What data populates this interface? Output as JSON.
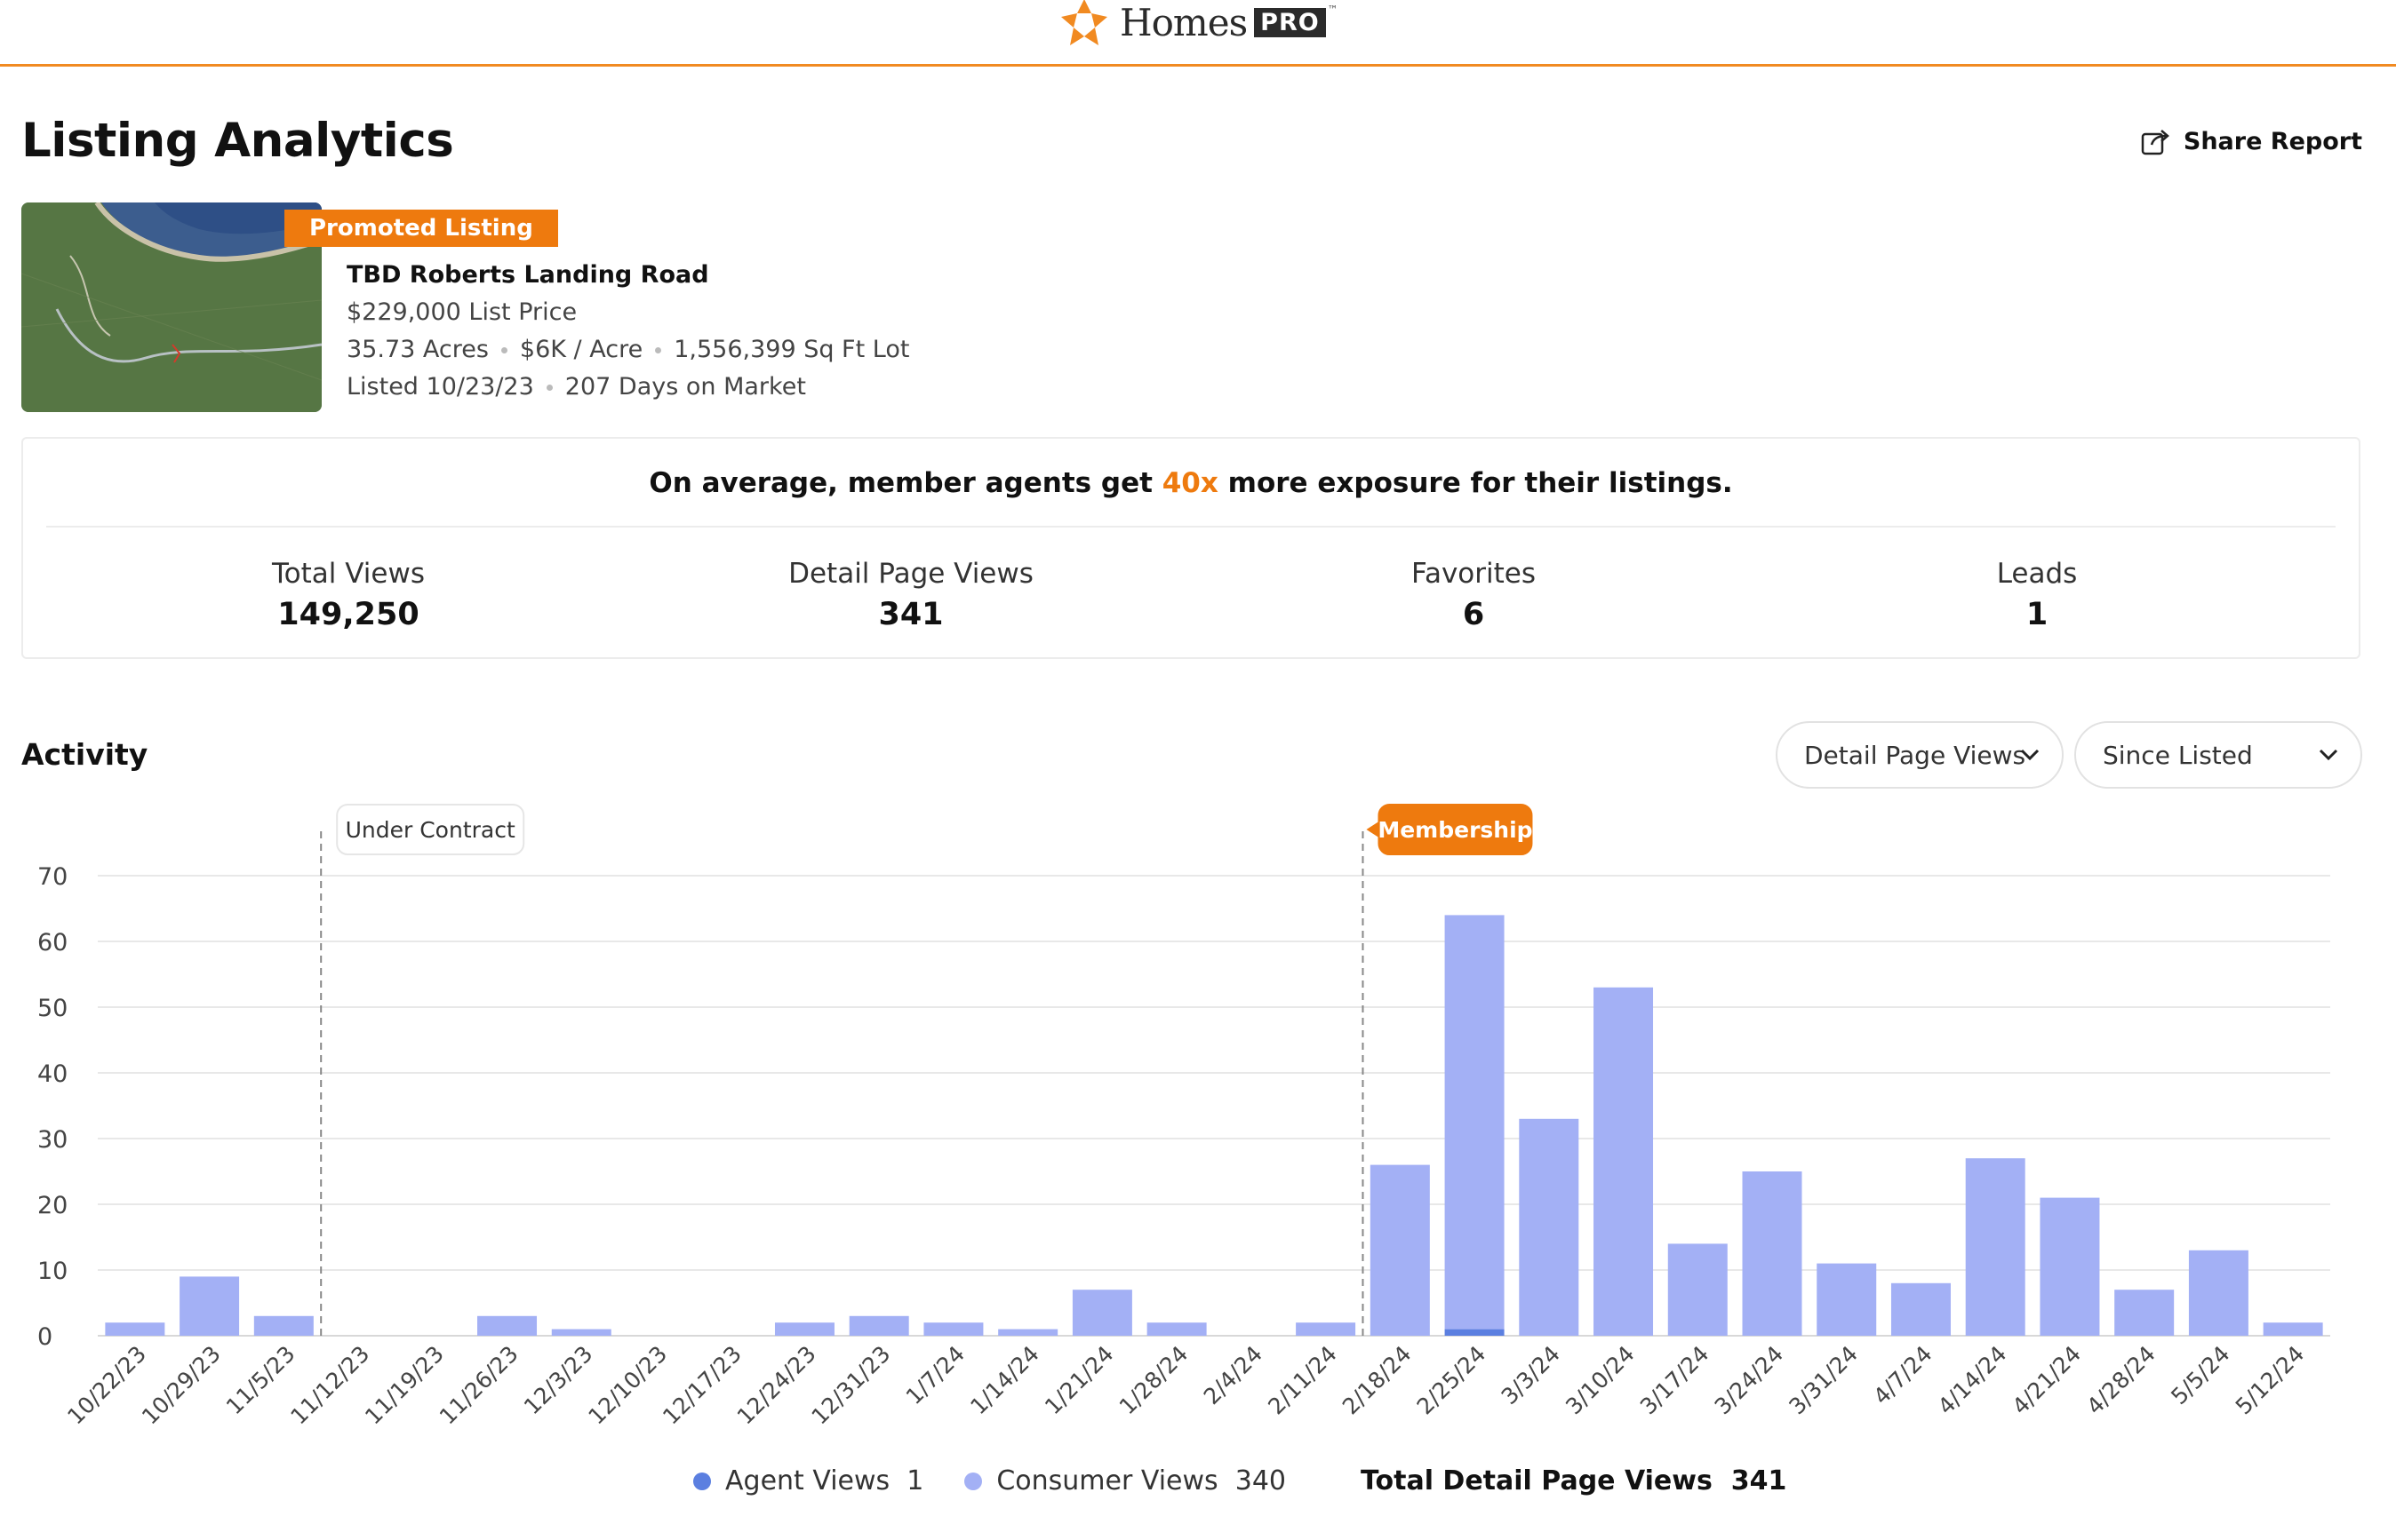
{
  "brand": {
    "name": "Homes",
    "badge": "PRO",
    "tm": "™"
  },
  "header": {
    "title": "Listing Analytics",
    "share_label": "Share Report"
  },
  "listing": {
    "badge": "Promoted Listing",
    "address": "TBD Roberts Landing Road",
    "price": "$229,000 List Price",
    "acres": "35.73 Acres",
    "per_acre": "$6K / Acre",
    "lot": "1,556,399 Sq Ft Lot",
    "listed": "Listed 10/23/23",
    "dom": "207 Days on Market"
  },
  "stats": {
    "promo_before": "On average, member agents get ",
    "promo_highlight": "40x",
    "promo_after": " more exposure for their listings.",
    "items": [
      {
        "label": "Total Views",
        "value": "149,250"
      },
      {
        "label": "Detail Page Views",
        "value": "341"
      },
      {
        "label": "Favorites",
        "value": "6"
      },
      {
        "label": "Leads",
        "value": "1"
      }
    ]
  },
  "activity": {
    "title": "Activity",
    "metric_select": "Detail Page Views",
    "range_select": "Since Listed"
  },
  "colors": {
    "accent": "#ee7a0e",
    "consumer": "#a3b0f5",
    "agent": "#5b7fe0"
  },
  "chart_data": {
    "type": "bar",
    "stacked": true,
    "categories": [
      "10/22/23",
      "10/29/23",
      "11/5/23",
      "11/12/23",
      "11/19/23",
      "11/26/23",
      "12/3/23",
      "12/10/23",
      "12/17/23",
      "12/24/23",
      "12/31/23",
      "1/7/24",
      "1/14/24",
      "1/21/24",
      "1/28/24",
      "2/4/24",
      "2/11/24",
      "2/18/24",
      "2/25/24",
      "3/3/24",
      "3/10/24",
      "3/17/24",
      "3/24/24",
      "3/31/24",
      "4/7/24",
      "4/14/24",
      "4/21/24",
      "4/28/24",
      "5/5/24",
      "5/12/24"
    ],
    "series": [
      {
        "name": "Agent Views",
        "values": [
          0,
          0,
          0,
          0,
          0,
          0,
          0,
          0,
          0,
          0,
          0,
          0,
          0,
          0,
          0,
          0,
          0,
          0,
          1,
          0,
          0,
          0,
          0,
          0,
          0,
          0,
          0,
          0,
          0,
          0
        ]
      },
      {
        "name": "Consumer Views",
        "values": [
          2,
          9,
          3,
          0,
          0,
          3,
          1,
          0,
          0,
          2,
          3,
          2,
          1,
          7,
          2,
          0,
          2,
          26,
          63,
          33,
          53,
          14,
          25,
          11,
          8,
          27,
          21,
          7,
          13,
          2
        ]
      }
    ],
    "ylim": [
      0,
      70
    ],
    "yticks": [
      0,
      10,
      20,
      30,
      40,
      50,
      60,
      70
    ],
    "grid": true,
    "annotations": [
      {
        "label": "Under Contract",
        "at": "11/12/23",
        "style": "light"
      },
      {
        "label": "Membership",
        "at": "2/18/24",
        "style": "accent"
      }
    ],
    "legend": {
      "position": "bottom",
      "agent_label": "Agent Views",
      "agent_count": "1",
      "consumer_label": "Consumer Views",
      "consumer_count": "340",
      "total_label": "Total Detail Page Views",
      "total_count": "341"
    }
  }
}
